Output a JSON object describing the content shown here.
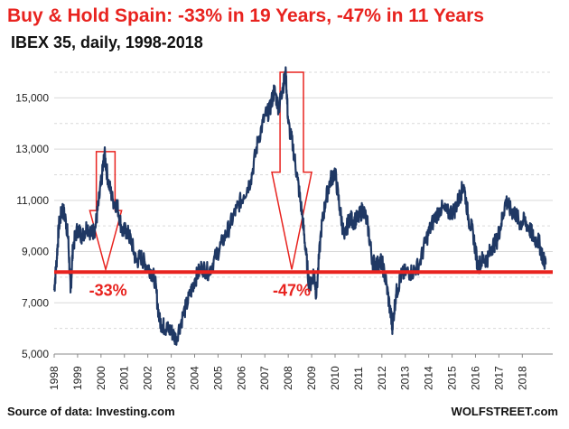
{
  "header": {
    "title": "Buy & Hold Spain: -33% in 19 Years, -47% in 11 Years",
    "subtitle": "IBEX 35, daily, 1998-2018"
  },
  "footer": {
    "source": "Source of data: Investing.com",
    "brand": "WOLFSTREET.com"
  },
  "colors": {
    "series": "#1f3864",
    "accent": "#e8231f",
    "grid": "#d9d9d9"
  },
  "chart_data": {
    "type": "line",
    "title": "Buy & Hold Spain: -33% in 19 Years, -47% in 11 Years",
    "subtitle": "IBEX 35, daily, 1998-2018",
    "xlabel": "",
    "ylabel": "",
    "xlim": [
      1998.0,
      2019.3
    ],
    "ylim": [
      5000,
      16000
    ],
    "grid": true,
    "y_ticks": [
      5000,
      7000,
      9000,
      11000,
      13000,
      15000
    ],
    "y_tick_labels": [
      "5,000",
      "7,000",
      "9,000",
      "11,000",
      "13,000",
      "15,000"
    ],
    "x_tick_labels": [
      "1998",
      "1999",
      "2000",
      "2001",
      "2002",
      "2003",
      "2004",
      "2005",
      "2006",
      "2007",
      "2008",
      "2009",
      "2010",
      "2011",
      "2012",
      "2013",
      "2014",
      "2015",
      "2016",
      "2017",
      "2018"
    ],
    "series": [
      {
        "x": [
          1998.0,
          1998.1,
          1998.2,
          1998.35,
          1998.5,
          1998.6,
          1998.7,
          1998.8,
          1999.0,
          1999.2,
          1999.4,
          1999.6,
          1999.75,
          1999.9,
          2000.05,
          2000.15,
          2000.3,
          2000.5,
          2000.7,
          2000.9,
          2001.1,
          2001.3,
          2001.5,
          2001.7,
          2001.9,
          2002.1,
          2002.3,
          2002.5,
          2002.65,
          2002.8,
          2003.0,
          2003.2,
          2003.5,
          2003.8,
          2004.0,
          2004.3,
          2004.6,
          2004.9,
          2005.2,
          2005.5,
          2005.8,
          2006.1,
          2006.4,
          2006.7,
          2007.0,
          2007.2,
          2007.4,
          2007.6,
          2007.75,
          2007.9,
          2008.0,
          2008.2,
          2008.4,
          2008.6,
          2008.75,
          2008.9,
          2009.1,
          2009.2,
          2009.4,
          2009.6,
          2009.8,
          2010.0,
          2010.2,
          2010.4,
          2010.6,
          2010.8,
          2011.0,
          2011.2,
          2011.4,
          2011.6,
          2011.8,
          2012.0,
          2012.2,
          2012.4,
          2012.45,
          2012.6,
          2012.8,
          2013.0,
          2013.3,
          2013.6,
          2013.9,
          2014.2,
          2014.5,
          2014.8,
          2015.1,
          2015.3,
          2015.5,
          2015.7,
          2015.9,
          2016.1,
          2016.3,
          2016.5,
          2016.7,
          2016.9,
          2017.1,
          2017.3,
          2017.5,
          2017.7,
          2017.9,
          2018.1,
          2018.3,
          2018.5,
          2018.7,
          2018.9,
          2019.0
        ],
        "y": [
          7500,
          8600,
          10000,
          10700,
          10200,
          9500,
          7400,
          9200,
          9900,
          9600,
          10000,
          9700,
          9900,
          10900,
          12000,
          12800,
          11800,
          11000,
          10800,
          9800,
          9800,
          9400,
          8600,
          8800,
          8500,
          8300,
          7900,
          6300,
          6100,
          6000,
          5900,
          5600,
          6500,
          7300,
          7900,
          8400,
          8200,
          8800,
          9400,
          10000,
          10700,
          11200,
          11800,
          13300,
          14300,
          14500,
          15300,
          14600,
          15400,
          15900,
          14000,
          13100,
          11800,
          10400,
          9000,
          7600,
          8200,
          7300,
          9800,
          11000,
          11800,
          12100,
          10700,
          9500,
          10300,
          10200,
          10300,
          10700,
          10000,
          8600,
          8500,
          8600,
          7700,
          6400,
          6100,
          7300,
          8000,
          8200,
          8200,
          8500,
          9500,
          10200,
          10700,
          10500,
          10600,
          11100,
          11600,
          10300,
          9700,
          8400,
          8700,
          8700,
          9200,
          9400,
          10100,
          11000,
          10600,
          10500,
          10100,
          10200,
          9900,
          9500,
          9400,
          8700,
          8500
        ]
      }
    ],
    "reference_line": {
      "value": 8200
    },
    "annotations": [
      {
        "label": "-33%",
        "x": 2000.3,
        "y": 7900
      },
      {
        "label": "-47%",
        "x": 2008.15,
        "y": 7900
      }
    ],
    "arrows": [
      {
        "x_start": 1999.8,
        "x_end": 2000.6,
        "y_top": 12900,
        "y_shaft_bottom": 10600,
        "y_tip": 8300
      },
      {
        "x_start": 2007.65,
        "x_end": 2008.65,
        "y_top": 16000,
        "y_shaft_bottom": 12100,
        "y_tip": 8300
      }
    ]
  }
}
